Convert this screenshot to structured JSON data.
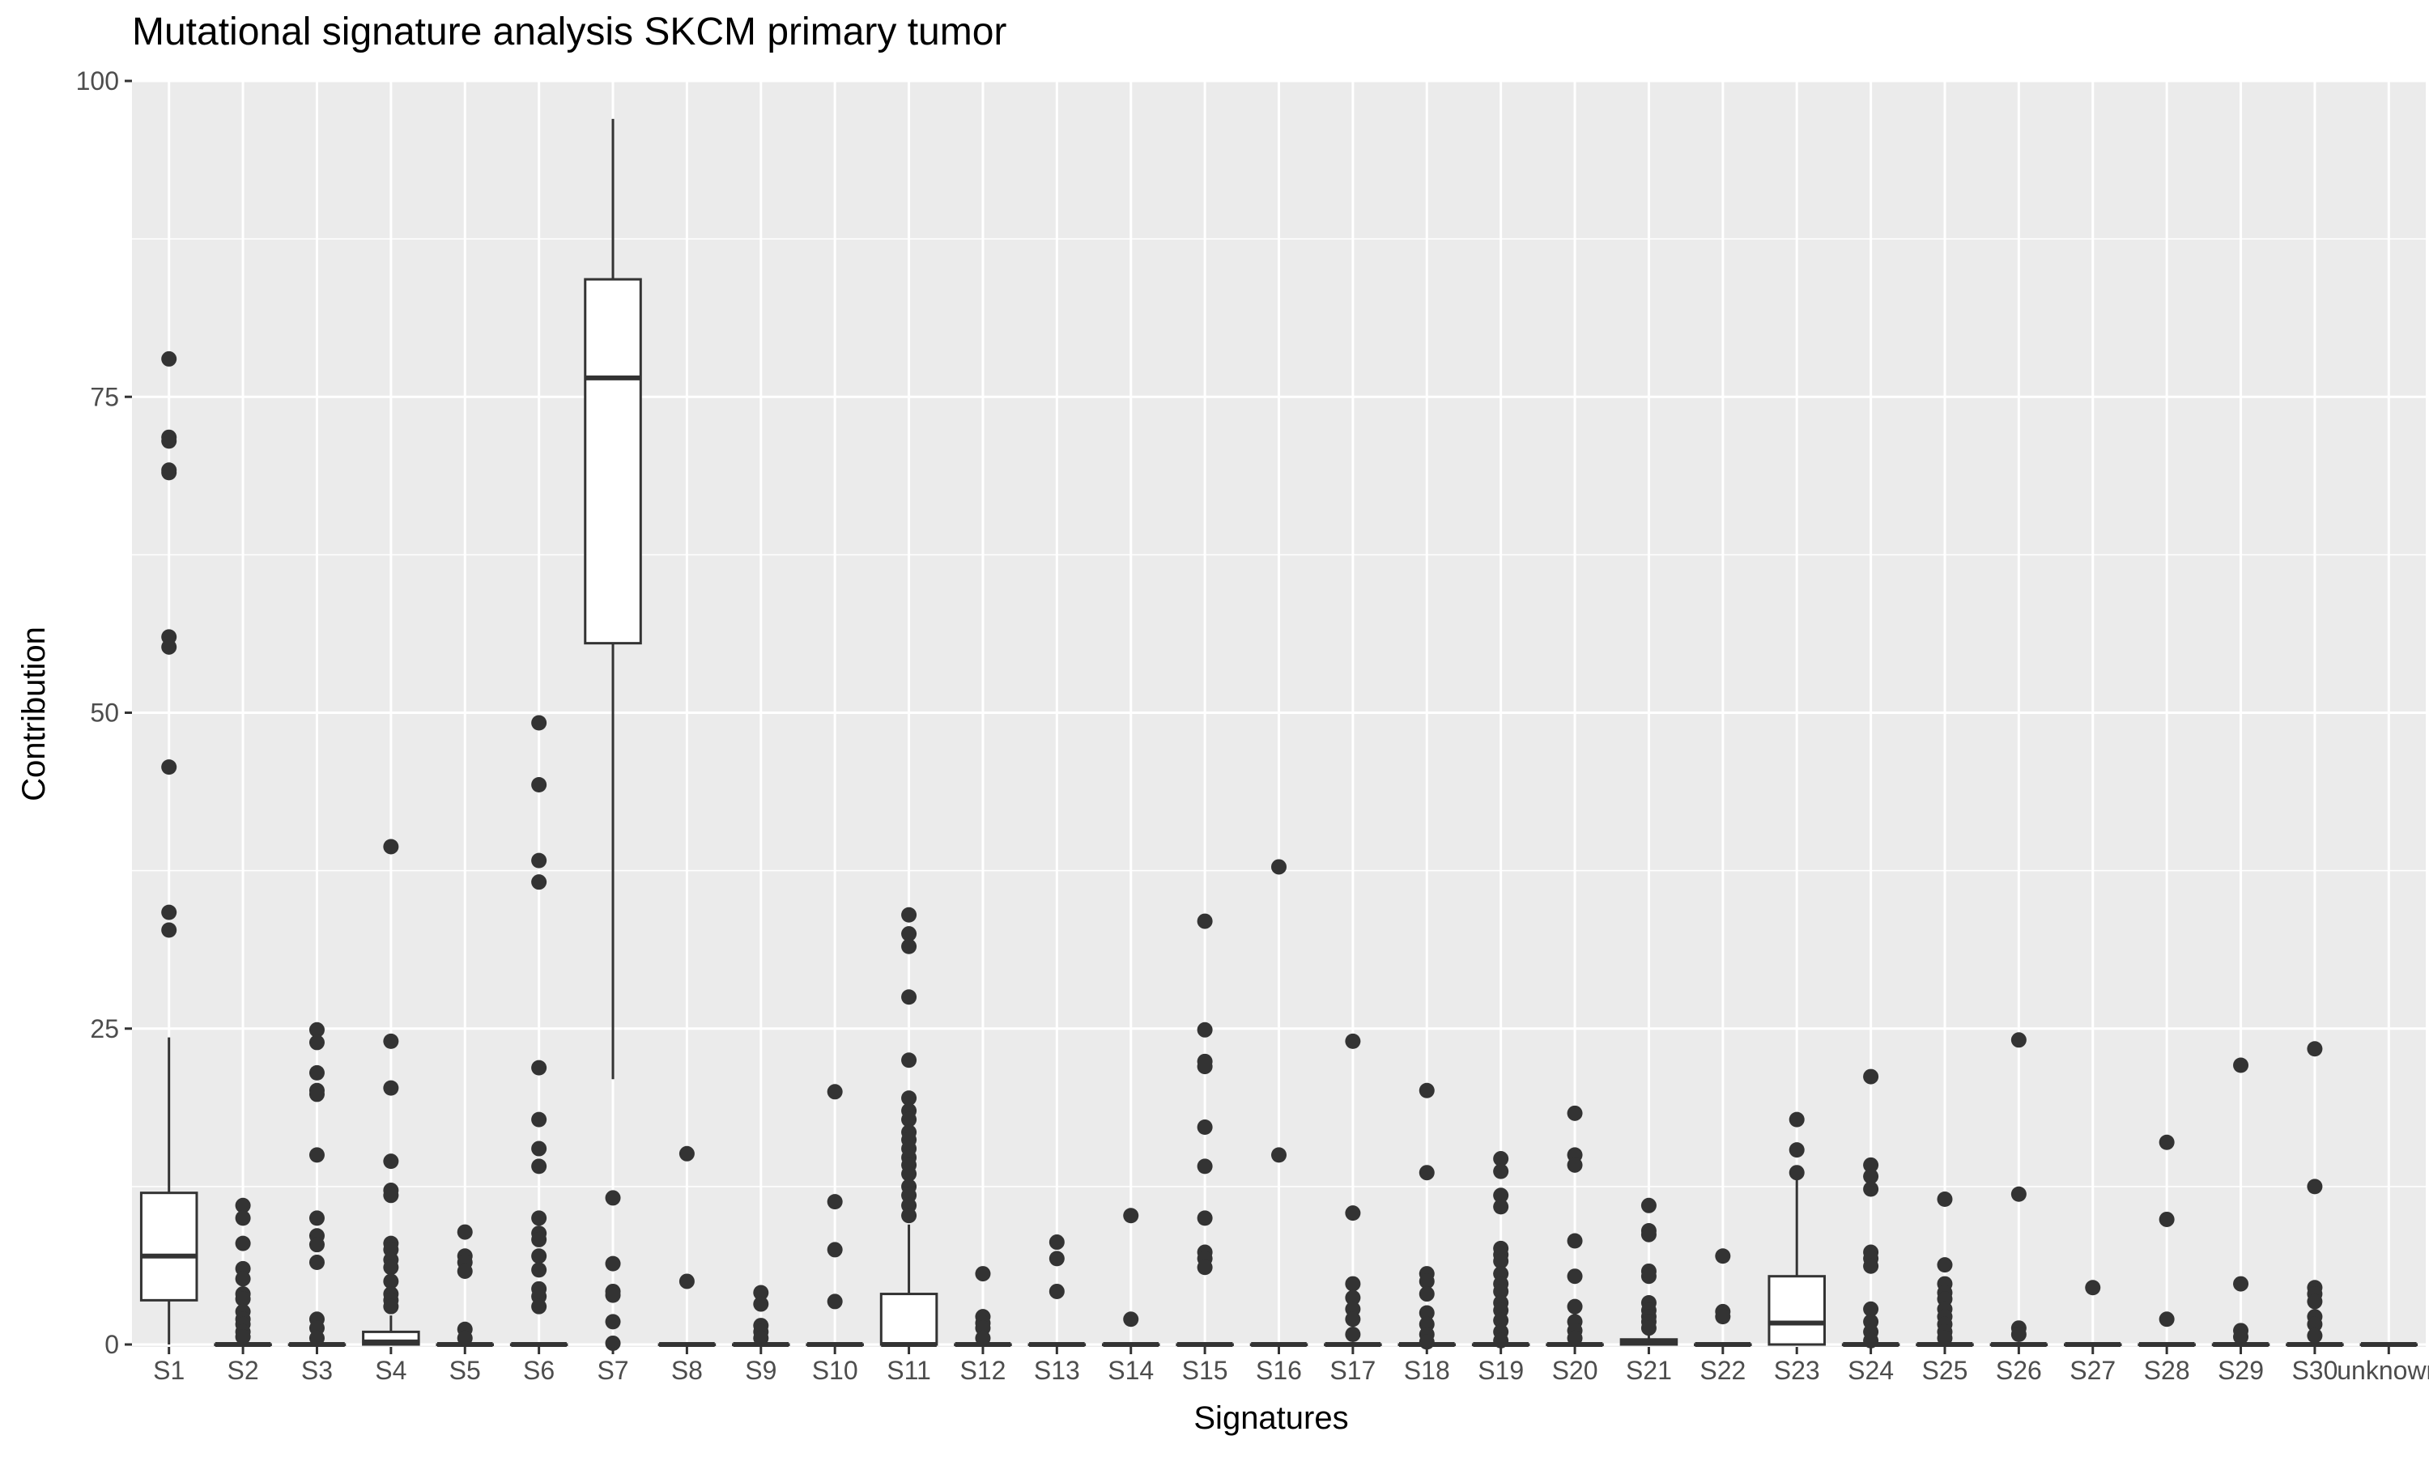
{
  "chart_data": {
    "type": "box",
    "title": "Mutational signature analysis SKCM primary tumor",
    "xlabel": "Signatures",
    "ylabel": "Contribution",
    "ylim": [
      0,
      100
    ],
    "yticks": [
      0,
      25,
      50,
      75,
      100
    ],
    "grid": true,
    "categories": [
      "S1",
      "S2",
      "S3",
      "S4",
      "S5",
      "S6",
      "S7",
      "S8",
      "S9",
      "S10",
      "S11",
      "S12",
      "S13",
      "S14",
      "S15",
      "S16",
      "S17",
      "S18",
      "S19",
      "S20",
      "S21",
      "S22",
      "S23",
      "S24",
      "S25",
      "S26",
      "S27",
      "S28",
      "S29",
      "S30",
      "unknown"
    ],
    "boxes": [
      {
        "q1": 3.5,
        "median": 7,
        "q3": 12,
        "whisker_low": 0,
        "whisker_high": 24.3,
        "outliers": [
          78,
          71.8,
          71.5,
          69.2,
          69,
          56,
          55.2,
          45.7,
          34.2,
          32.8
        ]
      },
      {
        "q1": 0,
        "median": 0,
        "q3": 0,
        "whisker_low": 0,
        "whisker_high": 0,
        "outliers": [
          11,
          10,
          8,
          6,
          5.2,
          4,
          3.6,
          2.6,
          2,
          1.6,
          1,
          0.6
        ]
      },
      {
        "q1": 0,
        "median": 0,
        "q3": 0,
        "whisker_low": 0,
        "whisker_high": 0,
        "outliers": [
          24.9,
          23.9,
          21.5,
          20.1,
          19.8,
          15,
          10,
          8.6,
          7.9,
          6.5,
          2,
          1.3,
          0.5
        ]
      },
      {
        "q1": 0,
        "median": 0.2,
        "q3": 1,
        "whisker_low": 0,
        "whisker_high": 2.3,
        "outliers": [
          39.4,
          24,
          20.3,
          14.5,
          12.2,
          11.8,
          8,
          7.5,
          6.7,
          6.1,
          5,
          4,
          3.5,
          3
        ]
      },
      {
        "q1": 0,
        "median": 0,
        "q3": 0,
        "whisker_low": 0,
        "whisker_high": 0,
        "outliers": [
          8.9,
          7,
          6.5,
          5.8,
          1.2,
          0.5
        ]
      },
      {
        "q1": 0,
        "median": 0,
        "q3": 0,
        "whisker_low": 0,
        "whisker_high": 0,
        "outliers": [
          49.2,
          44.3,
          38.3,
          36.6,
          21.9,
          17.8,
          15.5,
          14.1,
          10,
          8.8,
          8.3,
          7,
          5.9,
          4.4,
          3.8,
          3
        ]
      },
      {
        "q1": 55.5,
        "median": 76.5,
        "q3": 84.3,
        "whisker_low": 21,
        "whisker_high": 97,
        "outliers": [
          11.6,
          6.4,
          4.2,
          3.9,
          1.8,
          0.1
        ]
      },
      {
        "q1": 0,
        "median": 0,
        "q3": 0,
        "whisker_low": 0,
        "whisker_high": 0,
        "outliers": [
          15.1,
          5
        ]
      },
      {
        "q1": 0,
        "median": 0,
        "q3": 0,
        "whisker_low": 0,
        "whisker_high": 0,
        "outliers": [
          4.1,
          3.2,
          1.5,
          1,
          0.5
        ]
      },
      {
        "q1": 0,
        "median": 0,
        "q3": 0,
        "whisker_low": 0,
        "whisker_high": 0,
        "outliers": [
          20,
          11.3,
          7.5,
          3.4
        ]
      },
      {
        "q1": 0,
        "median": 0,
        "q3": 4,
        "whisker_low": 0,
        "whisker_high": 9.5,
        "outliers": [
          34,
          32.5,
          31.5,
          27.5,
          22.5,
          19.5,
          18.5,
          17.8,
          16.8,
          16.2,
          15.5,
          14.8,
          14.2,
          13.5,
          12.5,
          11.8,
          11,
          10.2
        ]
      },
      {
        "q1": 0,
        "median": 0,
        "q3": 0,
        "whisker_low": 0,
        "whisker_high": 0,
        "outliers": [
          5.6,
          2.2,
          1.7,
          1.3,
          0.5
        ]
      },
      {
        "q1": 0,
        "median": 0,
        "q3": 0,
        "whisker_low": 0,
        "whisker_high": 0,
        "outliers": [
          8.1,
          6.8,
          4.2
        ]
      },
      {
        "q1": 0,
        "median": 0,
        "q3": 0,
        "whisker_low": 0,
        "whisker_high": 0,
        "outliers": [
          10.2,
          2
        ]
      },
      {
        "q1": 0,
        "median": 0,
        "q3": 0,
        "whisker_low": 0,
        "whisker_high": 0,
        "outliers": [
          33.5,
          24.9,
          22.4,
          22,
          17.2,
          14.1,
          10,
          7.3,
          6.8,
          6.1
        ]
      },
      {
        "q1": 0,
        "median": 0,
        "q3": 0,
        "whisker_low": 0,
        "whisker_high": 0,
        "outliers": [
          37.8,
          15
        ]
      },
      {
        "q1": 0,
        "median": 0,
        "q3": 0,
        "whisker_low": 0,
        "whisker_high": 0,
        "outliers": [
          24,
          10.4,
          4.8,
          3.7,
          2.8,
          2,
          0.8
        ]
      },
      {
        "q1": 0,
        "median": 0,
        "q3": 0,
        "whisker_low": 0,
        "whisker_high": 0,
        "outliers": [
          20.1,
          13.6,
          5.6,
          5,
          4,
          2.5,
          1.6,
          0.8,
          0.2
        ]
      },
      {
        "q1": 0,
        "median": 0,
        "q3": 0,
        "whisker_low": 0,
        "whisker_high": 0,
        "outliers": [
          14.7,
          13.7,
          11.8,
          10.9,
          7.6,
          7.1,
          6.6,
          5.6,
          4.8,
          4.2,
          3.3,
          2.7,
          1.9,
          1,
          0.3
        ]
      },
      {
        "q1": 0,
        "median": 0,
        "q3": 0,
        "whisker_low": 0,
        "whisker_high": 0,
        "outliers": [
          18.3,
          15,
          14.2,
          8.2,
          5.4,
          3,
          1.8,
          1.1,
          0.5
        ]
      },
      {
        "q1": 0,
        "median": 0.2,
        "q3": 0.4,
        "whisker_low": 0,
        "whisker_high": 0.9,
        "outliers": [
          11,
          9,
          8.7,
          5.8,
          5.4,
          3.3,
          2.7,
          2.2,
          1.8,
          1.3
        ]
      },
      {
        "q1": 0,
        "median": 0,
        "q3": 0,
        "whisker_low": 0,
        "whisker_high": 0,
        "outliers": [
          7,
          2.6,
          2.2
        ]
      },
      {
        "q1": 0,
        "median": 1.7,
        "q3": 5.4,
        "whisker_low": 0,
        "whisker_high": 13.5,
        "outliers": [
          17.8,
          15.4,
          13.6
        ]
      },
      {
        "q1": 0,
        "median": 0,
        "q3": 0,
        "whisker_low": 0,
        "whisker_high": 0,
        "outliers": [
          21.2,
          14.2,
          13.3,
          12.3,
          7.3,
          6.8,
          6.2,
          2.8,
          1.8,
          1,
          0.3
        ]
      },
      {
        "q1": 0,
        "median": 0,
        "q3": 0,
        "whisker_low": 0,
        "whisker_high": 0,
        "outliers": [
          11.5,
          6.3,
          4.8,
          4.1,
          3.6,
          2.8,
          2.2,
          1.6,
          1,
          0.5
        ]
      },
      {
        "q1": 0,
        "median": 0,
        "q3": 0,
        "whisker_low": 0,
        "whisker_high": 0,
        "outliers": [
          24.1,
          11.9,
          1.3,
          0.8
        ]
      },
      {
        "q1": 0,
        "median": 0,
        "q3": 0,
        "whisker_low": 0,
        "whisker_high": 0,
        "outliers": [
          4.5
        ]
      },
      {
        "q1": 0,
        "median": 0,
        "q3": 0,
        "whisker_low": 0,
        "whisker_high": 0,
        "outliers": [
          16,
          9.9,
          2
        ]
      },
      {
        "q1": 0,
        "median": 0,
        "q3": 0,
        "whisker_low": 0,
        "whisker_high": 0,
        "outliers": [
          22.1,
          4.8,
          1.1,
          0.6
        ]
      },
      {
        "q1": 0,
        "median": 0,
        "q3": 0,
        "whisker_low": 0,
        "whisker_high": 0,
        "outliers": [
          23.4,
          12.5,
          4.5,
          4,
          3.4,
          2.2,
          1.6,
          0.7
        ]
      },
      {
        "q1": 0,
        "median": 0,
        "q3": 0,
        "whisker_low": 0,
        "whisker_high": 0,
        "outliers": []
      }
    ],
    "colors": {
      "panel_background": "#ebebeb",
      "grid_line": "#ffffff",
      "box_fill": "#ffffff",
      "box_line": "#333333",
      "outlier": "#333333",
      "tick_text": "#4d4d4d",
      "title_text": "#000000"
    }
  }
}
